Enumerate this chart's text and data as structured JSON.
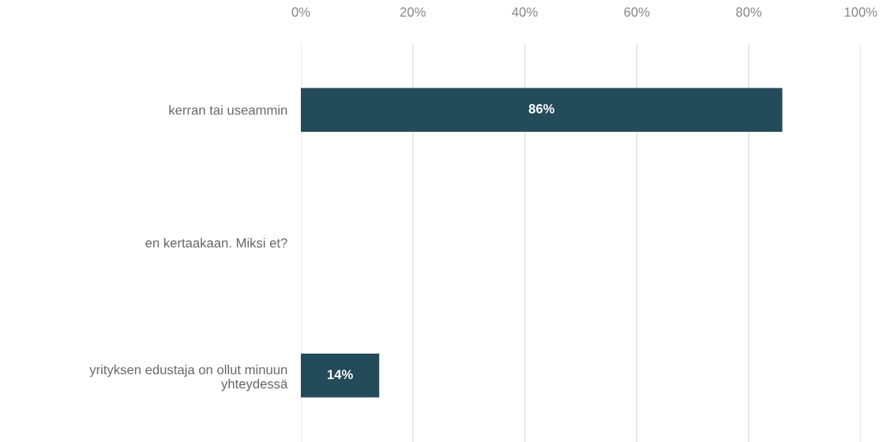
{
  "chart_data": {
    "type": "bar",
    "orientation": "horizontal",
    "categories": [
      "kerran tai useammin",
      "en kertaakaan. Miksi et?",
      "yrityksen edustaja on ollut minuun\nyhteydessä"
    ],
    "values": [
      86,
      0,
      14
    ],
    "color": "#234b5a",
    "value_labels": [
      "86%",
      null,
      "14%"
    ],
    "xlim": [
      0,
      100
    ],
    "xticks": [
      {
        "value": 0,
        "label": "0%"
      },
      {
        "value": 20,
        "label": "20%"
      },
      {
        "value": 40,
        "label": "40%"
      },
      {
        "value": 60,
        "label": "60%"
      },
      {
        "value": 80,
        "label": "80%"
      },
      {
        "value": 100,
        "label": "100%"
      }
    ],
    "grid": "x",
    "legend": false
  }
}
